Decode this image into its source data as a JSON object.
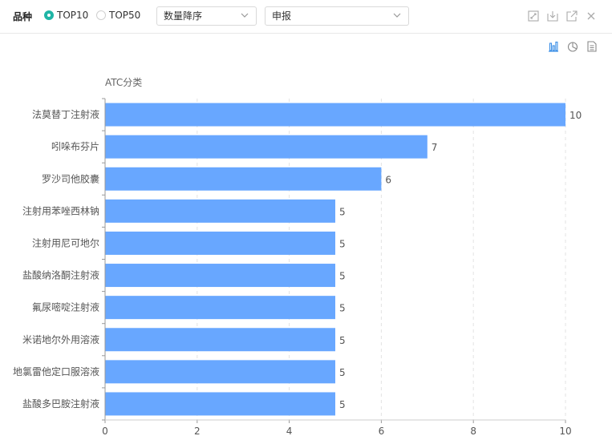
{
  "toolbar": {
    "title": "品种",
    "radio_top10": "TOP10",
    "radio_top50": "TOP50",
    "selected_radio": "TOP10",
    "sort_select": "数量降序",
    "type_select": "申报",
    "accent_color": "#1fb5a6"
  },
  "window_icons": [
    "expand-icon",
    "download-icon",
    "external-link-icon",
    "close-icon"
  ],
  "chart_icons": [
    "bar-chart-icon",
    "pie-chart-icon",
    "document-icon"
  ],
  "chart_data": {
    "type": "bar",
    "orientation": "horizontal",
    "ylabel": "ATC分类",
    "categories": [
      "法莫替丁注射液",
      "吲哚布芬片",
      "罗沙司他胶囊",
      "注射用苯唑西林钠",
      "注射用尼可地尔",
      "盐酸纳洛酮注射液",
      "氟尿嘧啶注射液",
      "米诺地尔外用溶液",
      "地氯雷他定口服溶液",
      "盐酸多巴胺注射液"
    ],
    "values": [
      10,
      7,
      6,
      5,
      5,
      5,
      5,
      5,
      5,
      5
    ],
    "xlim": [
      0,
      10
    ],
    "xticks": [
      "0",
      "2",
      "4",
      "6",
      "8",
      "10"
    ],
    "bar_color": "#68a7ff",
    "grid": "vertical dashed",
    "data_labels": true
  }
}
